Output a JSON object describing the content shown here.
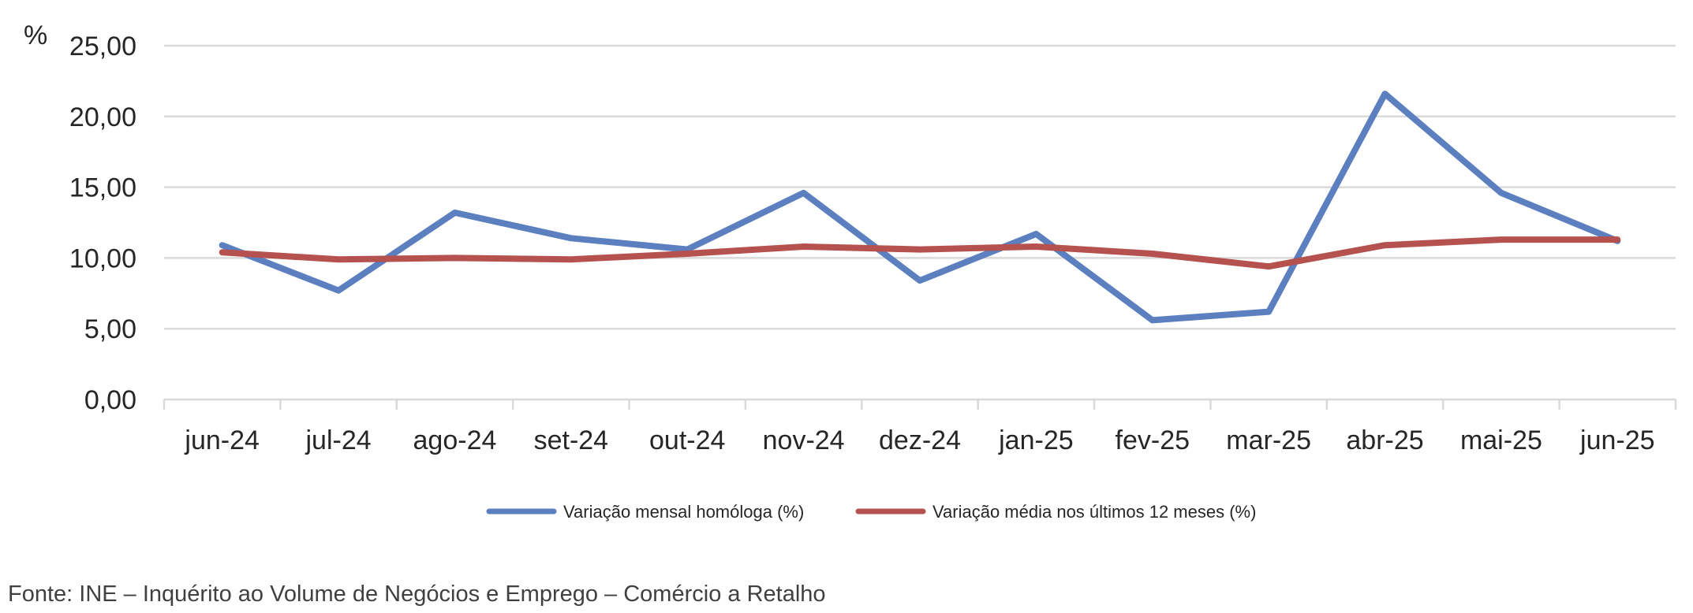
{
  "chart_data": {
    "type": "line",
    "unit_label": "%",
    "categories": [
      "jun-24",
      "jul-24",
      "ago-24",
      "set-24",
      "out-24",
      "nov-24",
      "dez-24",
      "jan-25",
      "fev-25",
      "mar-25",
      "abr-25",
      "mai-25",
      "jun-25"
    ],
    "ylim": [
      0,
      25
    ],
    "yticks": [
      "0,00",
      "5,00",
      "10,00",
      "15,00",
      "20,00",
      "25,00"
    ],
    "ytick_values": [
      0,
      5,
      10,
      15,
      20,
      25
    ],
    "grid": true,
    "legend_position": "bottom",
    "series": [
      {
        "name": "Variação mensal homóloga (%)",
        "color": "#5b7fbf",
        "values": [
          10.9,
          7.7,
          13.2,
          11.4,
          10.6,
          14.6,
          8.4,
          11.7,
          5.6,
          6.2,
          21.6,
          14.6,
          11.2
        ]
      },
      {
        "name": "Variação média nos últimos 12 meses (%)",
        "color": "#b5524f",
        "values": [
          10.4,
          9.9,
          10.0,
          9.9,
          10.3,
          10.8,
          10.6,
          10.8,
          10.3,
          9.4,
          10.9,
          11.3,
          11.3
        ]
      }
    ]
  },
  "source": "Fonte: INE – Inquérito ao Volume de Negócios e Emprego – Comércio a Retalho"
}
